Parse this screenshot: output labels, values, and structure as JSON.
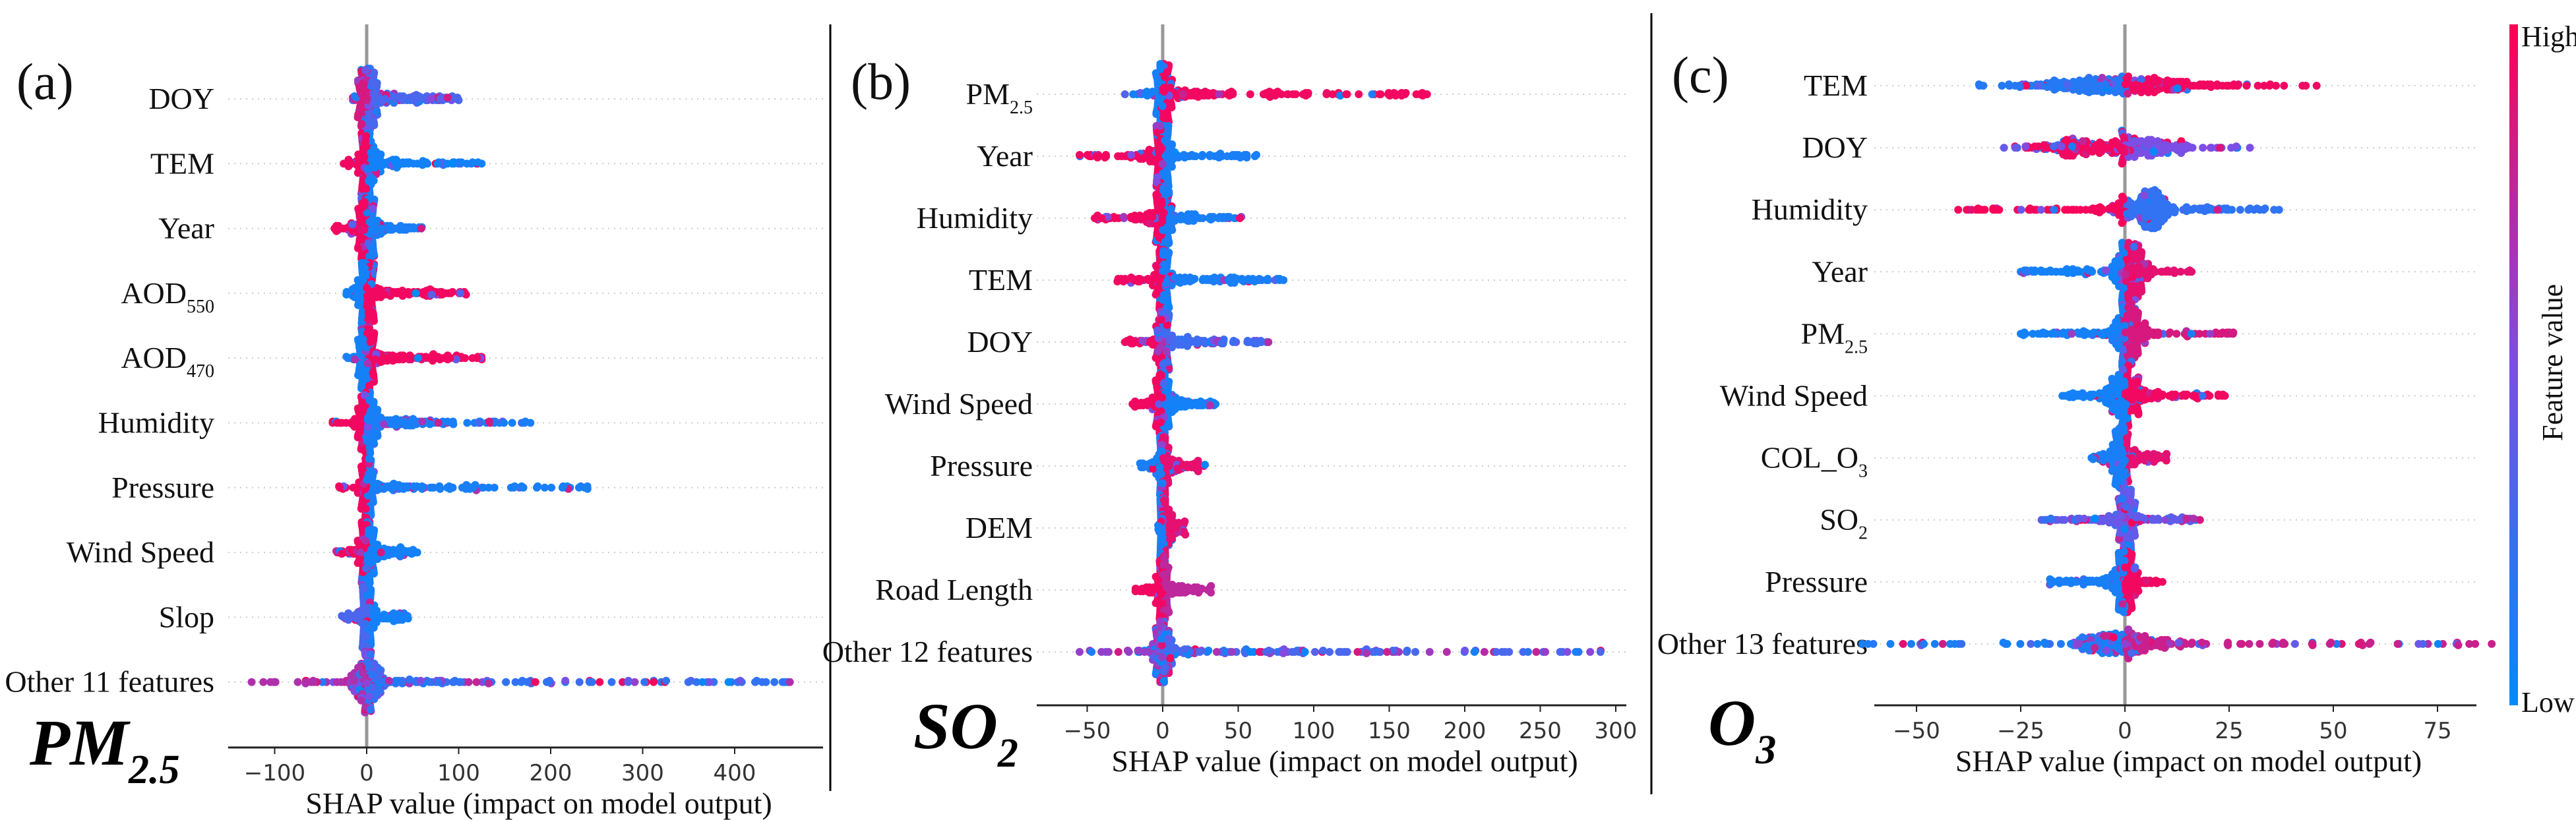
{
  "colors": {
    "low": "#008bfb",
    "mid": "#7b4fe6",
    "high": "#ff0052",
    "zero_line": "#999999",
    "grid": "#cccccc"
  },
  "colorbar": {
    "high_label": "High",
    "low_label": "Low",
    "title": "Feature value"
  },
  "chart_data": [
    {
      "type": "scatter",
      "subtype": "shap-beeswarm",
      "panel_label": "(a)",
      "pollutant": "PM",
      "pollutant_sub": "2.5",
      "xlabel": "SHAP value (impact on model output)",
      "xticks": [
        -100,
        0,
        100,
        200,
        300,
        400
      ],
      "xlim": [
        -150,
        495
      ],
      "features": [
        {
          "name": "DOY",
          "sub": "",
          "min": -15,
          "max": 100,
          "core_sd": 5,
          "left_value": 0.85,
          "right_value": 0.3,
          "mix": 0.45
        },
        {
          "name": "TEM",
          "sub": "",
          "min": -25,
          "max": 125,
          "core_sd": 4,
          "left_value": 0.95,
          "right_value": 0.08,
          "mix": 0.15
        },
        {
          "name": "Year",
          "sub": "",
          "min": -35,
          "max": 60,
          "core_sd": 5,
          "left_value": 0.95,
          "right_value": 0.1,
          "mix": 0.2
        },
        {
          "name": "AOD",
          "sub": "550",
          "min": -22,
          "max": 108,
          "core_sd": 5,
          "left_value": 0.08,
          "right_value": 0.95,
          "mix": 0.12
        },
        {
          "name": "AOD",
          "sub": "470",
          "min": -22,
          "max": 125,
          "core_sd": 5,
          "left_value": 0.08,
          "right_value": 0.95,
          "mix": 0.12
        },
        {
          "name": "Humidity",
          "sub": "",
          "min": -37,
          "max": 178,
          "core_sd": 5,
          "left_value": 0.95,
          "right_value": 0.1,
          "mix": 0.15
        },
        {
          "name": "Pressure",
          "sub": "",
          "min": -30,
          "max": 240,
          "core_sd": 3,
          "left_value": 0.95,
          "right_value": 0.1,
          "mix": 0.12
        },
        {
          "name": "Wind Speed",
          "sub": "",
          "min": -33,
          "max": 55,
          "core_sd": 4,
          "left_value": 0.95,
          "right_value": 0.08,
          "mix": 0.15
        },
        {
          "name": "Slop",
          "sub": "",
          "min": -27,
          "max": 45,
          "core_sd": 3,
          "left_value": 0.3,
          "right_value": 0.08,
          "mix": 0.2
        },
        {
          "name": "Other 11 features",
          "sub": "",
          "min": -125,
          "max": 460,
          "core_sd": 8,
          "left_value": 0.7,
          "right_value": 0.2,
          "mix": 0.5
        }
      ]
    },
    {
      "type": "scatter",
      "subtype": "shap-beeswarm",
      "panel_label": "(b)",
      "pollutant": "SO",
      "pollutant_sub": "2",
      "xlabel": "SHAP value (impact on model output)",
      "xticks": [
        -50,
        0,
        50,
        100,
        150,
        200,
        250,
        300
      ],
      "xlim": [
        -83,
        307
      ],
      "features": [
        {
          "name": "PM",
          "sub": "2.5",
          "min": -25,
          "max": 175,
          "core_sd": 2.5,
          "left_value": 0.08,
          "right_value": 0.95,
          "mix": 0.1
        },
        {
          "name": "Year",
          "sub": "",
          "min": -55,
          "max": 62,
          "core_sd": 3,
          "left_value": 0.95,
          "right_value": 0.1,
          "mix": 0.15
        },
        {
          "name": "Humidity",
          "sub": "",
          "min": -45,
          "max": 52,
          "core_sd": 2.5,
          "left_value": 0.95,
          "right_value": 0.1,
          "mix": 0.15
        },
        {
          "name": "TEM",
          "sub": "",
          "min": -30,
          "max": 80,
          "core_sd": 2,
          "left_value": 0.95,
          "right_value": 0.1,
          "mix": 0.12
        },
        {
          "name": "DOY",
          "sub": "",
          "min": -25,
          "max": 70,
          "core_sd": 2,
          "left_value": 0.95,
          "right_value": 0.25,
          "mix": 0.3
        },
        {
          "name": "Wind Speed",
          "sub": "",
          "min": -20,
          "max": 35,
          "core_sd": 2,
          "left_value": 0.95,
          "right_value": 0.08,
          "mix": 0.12
        },
        {
          "name": "Pressure",
          "sub": "",
          "min": -15,
          "max": 28,
          "core_sd": 1.5,
          "left_value": 0.1,
          "right_value": 0.9,
          "mix": 0.15
        },
        {
          "name": "DEM",
          "sub": "",
          "min": -3,
          "max": 15,
          "core_sd": 1,
          "left_value": 0.1,
          "right_value": 0.9,
          "mix": 0.15
        },
        {
          "name": "Road Length",
          "sub": "",
          "min": -18,
          "max": 32,
          "core_sd": 1.5,
          "left_value": 0.95,
          "right_value": 0.75,
          "mix": 0.2
        },
        {
          "name": "Other 12 features",
          "sub": "",
          "min": -55,
          "max": 290,
          "core_sd": 3,
          "left_value": 0.6,
          "right_value": 0.3,
          "mix": 0.55
        }
      ]
    },
    {
      "type": "scatter",
      "subtype": "shap-beeswarm",
      "panel_label": "(c)",
      "pollutant": "O",
      "pollutant_sub": "3",
      "xlabel": "SHAP value (impact on model output)",
      "xticks": [
        -50,
        -25,
        0,
        25,
        50,
        75
      ],
      "xlim": [
        -69,
        93
      ],
      "features": [
        {
          "name": "TEM",
          "sub": "",
          "min": -35,
          "max": 46,
          "core_sd": 5,
          "modes": [
            -10,
            8
          ],
          "left_value": 0.15,
          "right_value": 0.95,
          "mix": 0.2
        },
        {
          "name": "DOY",
          "sub": "",
          "min": -29,
          "max": 30,
          "core_sd": 4,
          "modes": [
            -12,
            5
          ],
          "left_value": 0.95,
          "right_value": 0.5,
          "mix": 0.35
        },
        {
          "name": "Humidity",
          "sub": "",
          "min": -40,
          "max": 37,
          "core_sd": 2.5,
          "modes": [
            6
          ],
          "left_value": 0.97,
          "right_value": 0.2,
          "mix": 0.15
        },
        {
          "name": "Year",
          "sub": "",
          "min": -25,
          "max": 16,
          "core_sd": 2,
          "modes": [
            1.5
          ],
          "left_value": 0.08,
          "right_value": 0.9,
          "mix": 0.2
        },
        {
          "name": "PM",
          "sub": "2.5",
          "min": -25,
          "max": 26,
          "core_sd": 1.8,
          "modes": [
            1
          ],
          "left_value": 0.08,
          "right_value": 0.85,
          "mix": 0.2
        },
        {
          "name": "Wind Speed",
          "sub": "",
          "min": -15,
          "max": 24,
          "core_sd": 2.2,
          "modes": [
            0
          ],
          "left_value": 0.08,
          "right_value": 0.95,
          "mix": 0.15
        },
        {
          "name": "COL_O",
          "sub": "3",
          "min": -8,
          "max": 10,
          "core_sd": 0.8,
          "modes": [
            -1
          ],
          "left_value": 0.1,
          "right_value": 0.9,
          "mix": 0.2
        },
        {
          "name": "SO",
          "sub": "2",
          "min": -20,
          "max": 18,
          "core_sd": 1,
          "modes": [
            0.5
          ],
          "left_value": 0.4,
          "right_value": 0.4,
          "mix": 0.5
        },
        {
          "name": "Pressure",
          "sub": "",
          "min": -18,
          "max": 9,
          "core_sd": 1.3,
          "modes": [
            0
          ],
          "left_value": 0.1,
          "right_value": 0.95,
          "mix": 0.15
        },
        {
          "name": "Other 13 features",
          "sub": "",
          "min": -63,
          "max": 88,
          "core_sd": 6,
          "modes": [
            -2
          ],
          "left_value": 0.1,
          "right_value": 0.8,
          "mix": 0.4
        }
      ]
    }
  ]
}
